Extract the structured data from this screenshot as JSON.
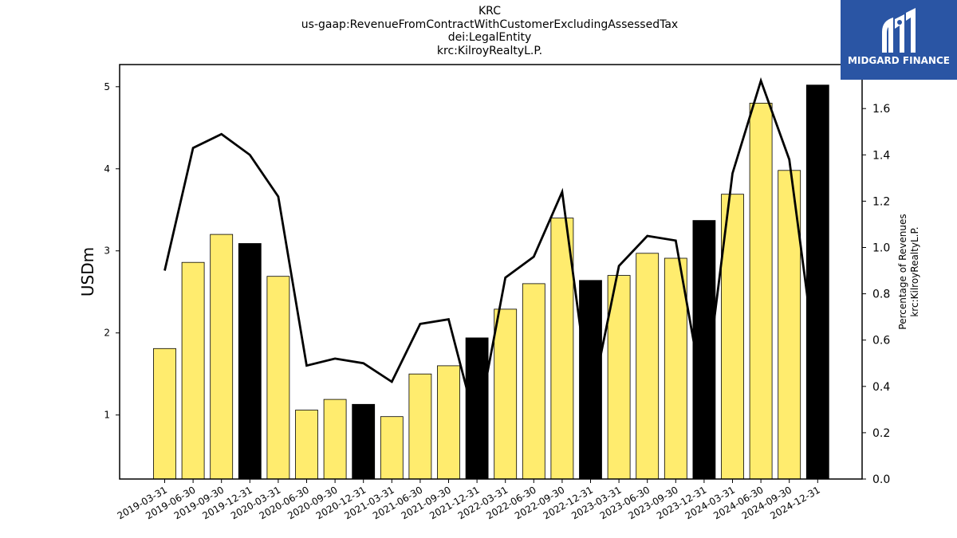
{
  "header": {
    "title_lines": [
      "KRC",
      "us-gaap:RevenueFromContractWithCustomerExcludingAssessedTax",
      "dei:LegalEntity",
      "krc:KilroyRealtyL.P."
    ]
  },
  "logo": {
    "text": "MIDGARD FINANCE",
    "color": "#2a55a4"
  },
  "chart_data": {
    "type": "bar",
    "categories": [
      "2019-03-31",
      "2019-06-30",
      "2019-09-30",
      "2019-12-31",
      "2020-03-31",
      "2020-06-30",
      "2020-09-30",
      "2020-12-31",
      "2021-03-31",
      "2021-06-30",
      "2021-09-30",
      "2021-12-31",
      "2022-03-31",
      "2022-06-30",
      "2022-09-30",
      "2022-12-31",
      "2023-03-31",
      "2023-06-30",
      "2023-09-30",
      "2023-12-31",
      "2024-03-31",
      "2024-06-30",
      "2024-09-30",
      "2024-12-31"
    ],
    "bar_values": [
      1.81,
      2.86,
      3.2,
      3.09,
      2.69,
      1.06,
      1.19,
      1.13,
      0.98,
      1.5,
      1.6,
      1.94,
      2.29,
      2.6,
      3.4,
      2.64,
      2.7,
      2.97,
      2.91,
      3.37,
      3.69,
      4.8,
      3.98,
      5.02
    ],
    "bar_colors": [
      "#ffec6e",
      "#ffec6e",
      "#ffec6e",
      "#000000",
      "#ffec6e",
      "#ffec6e",
      "#ffec6e",
      "#000000",
      "#ffec6e",
      "#ffec6e",
      "#ffec6e",
      "#000000",
      "#ffec6e",
      "#ffec6e",
      "#ffec6e",
      "#000000",
      "#ffec6e",
      "#ffec6e",
      "#ffec6e",
      "#000000",
      "#ffec6e",
      "#ffec6e",
      "#ffec6e",
      "#000000"
    ],
    "line_values": [
      0.9,
      1.43,
      1.49,
      1.4,
      1.22,
      0.49,
      0.52,
      0.5,
      0.42,
      0.67,
      0.69,
      0.22,
      0.87,
      0.96,
      1.24,
      0.32,
      0.92,
      1.05,
      1.03,
      0.34,
      1.32,
      1.72,
      1.38,
      0.45
    ],
    "ylabel": "USDm",
    "ylabel_right": [
      "Percentage of Revenues",
      "krc:KilroyRealtyL.P."
    ],
    "ylim": [
      0.22,
      5.27
    ],
    "ylim_right": [
      0.0,
      1.79
    ],
    "yticks": [
      1,
      2,
      3,
      4,
      5
    ],
    "yticks_right": [
      0.0,
      0.2,
      0.4,
      0.6,
      0.8,
      1.0,
      1.2,
      1.4,
      1.6
    ],
    "grid": false
  }
}
